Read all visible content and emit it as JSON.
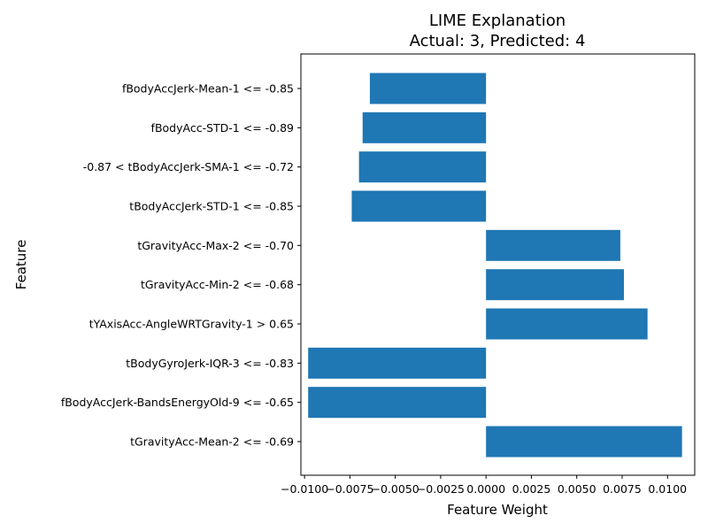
{
  "chart_data": {
    "type": "bar",
    "orientation": "horizontal",
    "title": "LIME Explanation",
    "subtitle": "Actual: 3, Predicted: 4",
    "xlabel": "Feature Weight",
    "ylabel": "Feature",
    "xlim": [
      -0.0102,
      0.0115
    ],
    "grid": false,
    "bar_color": "#1f77b4",
    "categories": [
      "fBodyAccJerk-Mean-1 <= -0.85",
      "fBodyAcc-STD-1 <= -0.89",
      "-0.87 < tBodyAccJerk-SMA-1 <= -0.72",
      "tBodyAccJerk-STD-1 <= -0.85",
      "tGravityAcc-Max-2 <= -0.70",
      "tGravityAcc-Min-2 <= -0.68",
      "tYAxisAcc-AngleWRTGravity-1 > 0.65",
      "tBodyGyroJerk-IQR-3 <= -0.83",
      "fBodyAccJerk-BandsEnergyOld-9 <= -0.65",
      "tGravityAcc-Mean-2 <= -0.69"
    ],
    "values": [
      -0.0064,
      -0.0068,
      -0.007,
      -0.0074,
      0.0074,
      0.0076,
      0.0089,
      -0.0098,
      -0.0098,
      0.0108
    ],
    "x_ticks": [
      -0.01,
      -0.0075,
      -0.005,
      -0.0025,
      0,
      0.0025,
      0.005,
      0.0075,
      0.01
    ],
    "x_tick_labels": [
      "−0.0100",
      "−0.0075",
      "−0.0050",
      "−0.0025",
      "0.0000",
      "0.0025",
      "0.0050",
      "0.0075",
      "0.0100"
    ]
  }
}
